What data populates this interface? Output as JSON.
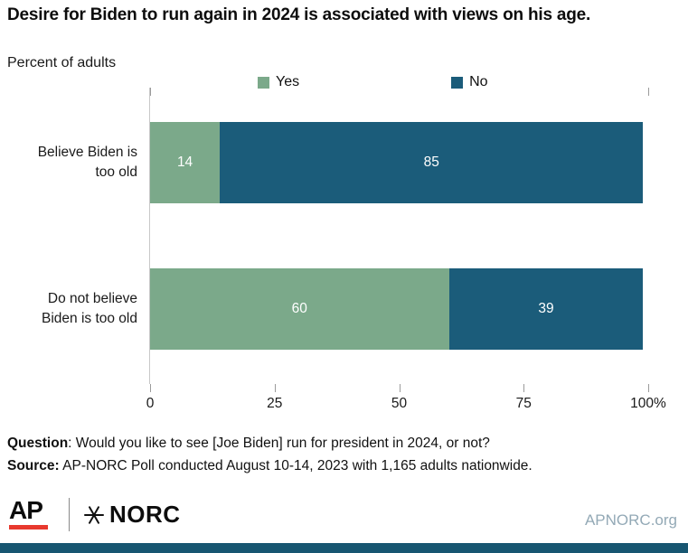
{
  "header": {
    "title": "Desire for Biden to run again in 2024 is associated with views on his age.",
    "subtitle": "Percent of adults"
  },
  "chart_data": {
    "type": "bar",
    "orientation": "horizontal",
    "stacked": true,
    "title": "Desire for Biden to run again in 2024 is associated with views on his age.",
    "subtitle": "Percent of adults",
    "categories": [
      [
        "Believe Biden is",
        "too old"
      ],
      [
        "Do not believe",
        "Biden is too old"
      ]
    ],
    "series": [
      {
        "name": "Yes",
        "color": "#7ba98a",
        "values": [
          14,
          60
        ]
      },
      {
        "name": "No",
        "color": "#1b5c7a",
        "values": [
          85,
          39
        ]
      }
    ],
    "xlim": [
      0,
      100
    ],
    "x_ticks": [
      0,
      25,
      50,
      75,
      100
    ],
    "x_tick_suffix": "%",
    "legend_position": "top",
    "value_labels": "inside-center-white",
    "grid": "off"
  },
  "notes": {
    "question_label": "Question",
    "question_rest": ": Would you like to see [Joe Biden] run for president in 2024, or not?",
    "source_label": "Source:",
    "source_rest": " AP-NORC Poll conducted August 10-14, 2023 with 1,165 adults nationwide."
  },
  "footer": {
    "ap_logo_text": "AP",
    "norc_logo_text": "NORC",
    "site_link": "APNORC.org"
  },
  "colors": {
    "yes_green": "#7ba98a",
    "no_teal": "#1b5c7a",
    "ap_red": "#e8392e",
    "footer_link": "#93a9b6",
    "bottom_bar": "#175671"
  }
}
